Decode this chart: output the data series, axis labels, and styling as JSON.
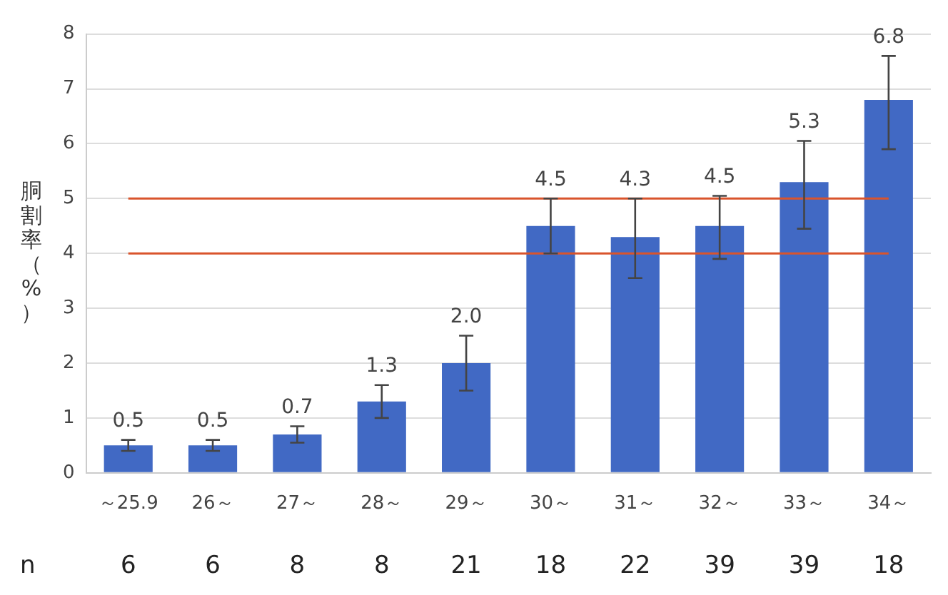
{
  "chart_data": {
    "type": "bar",
    "ylabel": "胴割率（%）",
    "categories": [
      "～25.9",
      "26～",
      "27～",
      "28～",
      "29～",
      "30～",
      "31～",
      "32～",
      "33～",
      "34～"
    ],
    "values": [
      0.5,
      0.5,
      0.7,
      1.3,
      2.0,
      4.5,
      4.3,
      4.5,
      5.3,
      6.8
    ],
    "errors": [
      [
        0.4,
        0.6
      ],
      [
        0.4,
        0.6
      ],
      [
        0.55,
        0.85
      ],
      [
        1.0,
        1.6
      ],
      [
        1.5,
        2.5
      ],
      [
        4.0,
        5.0
      ],
      [
        3.55,
        5.0
      ],
      [
        3.9,
        5.05
      ],
      [
        4.45,
        6.05
      ],
      [
        5.9,
        7.6
      ]
    ],
    "color": "#4169c4",
    "value_labels": [
      "0.5",
      "0.5",
      "0.7",
      "1.3",
      "2.0",
      "4.5",
      "4.3",
      "4.5",
      "5.3",
      "6.8"
    ],
    "ylim": [
      0,
      8
    ],
    "yticks": [
      0,
      1,
      2,
      3,
      4,
      5,
      6,
      7,
      8
    ],
    "grid": "y",
    "ref_lines": [
      {
        "axis": "y",
        "value": 4,
        "color": "#d9542c"
      },
      {
        "axis": "y",
        "value": 5,
        "color": "#d9542c"
      }
    ],
    "annotations": [
      "n",
      "6",
      "6",
      "8",
      "8",
      "21",
      "18",
      "22",
      "39",
      "39",
      "18"
    ]
  }
}
